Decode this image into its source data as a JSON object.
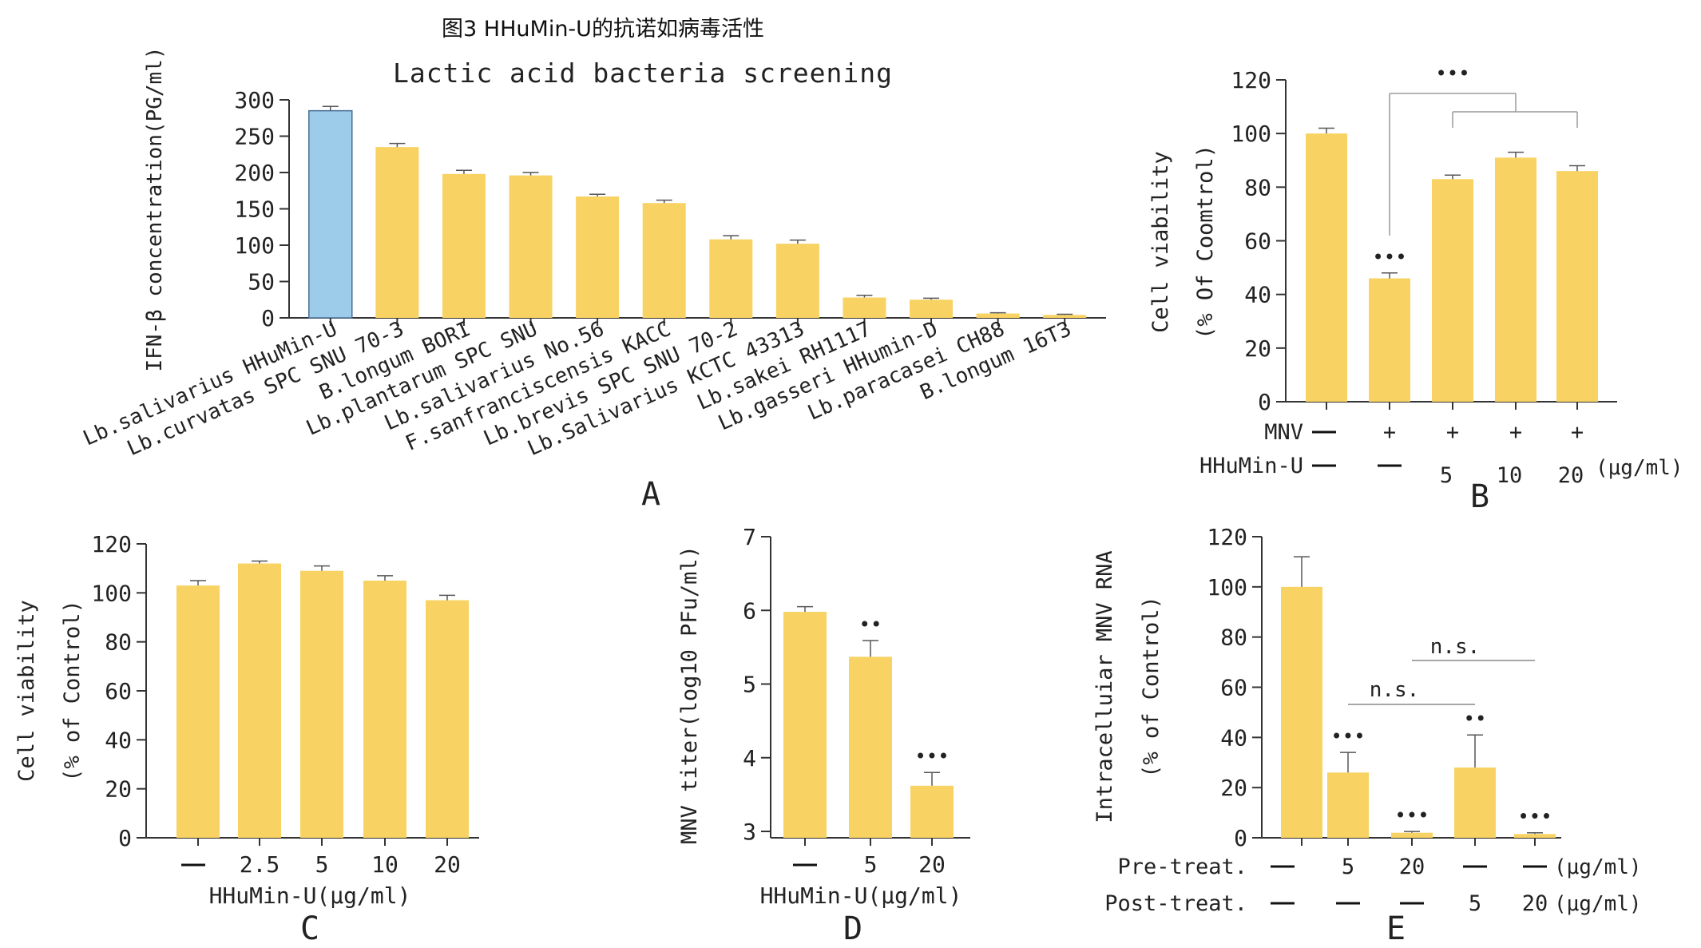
{
  "figure_title": "图3 HHuMin-U的抗诺如病毒活性",
  "colors": {
    "bar": "#F8D262",
    "highlight": "#9DCBEA",
    "highlight_edge": "#4A6E96",
    "axis": "#333333",
    "sig": "#999999",
    "bracket": "#9a9a9a"
  },
  "chart_data": [
    {
      "panel": "A",
      "type": "bar",
      "title": "Lactic acid bacteria screening",
      "ylabel": "IFN-β concentration(PG/ml)",
      "ylim": [
        0,
        300
      ],
      "yticks": [
        0,
        50,
        100,
        150,
        200,
        250,
        300
      ],
      "categories": [
        "Lb.salivarius HHuMin-U",
        "Lb.curvatas SPC SNU 70-3",
        "B.longum BORI",
        "Lb.plantarum SPC SNU",
        "Lb.salivarius No.56",
        "F.sanfranciscensis KACC",
        "Lb.brevis SPC SNU 70-2",
        "Lb.Salivarius KCTC 43313",
        "Lb.sakei RH1117",
        "Lb.gasseri HHumin-D",
        "Lb.paracasei CH88",
        "B.longum 16T3"
      ],
      "values": [
        285,
        235,
        198,
        196,
        167,
        158,
        108,
        102,
        28,
        25,
        6,
        4
      ],
      "errors": [
        6,
        5,
        5,
        4,
        3,
        4,
        5,
        5,
        3,
        2,
        1,
        1
      ],
      "highlight_index": 0
    },
    {
      "panel": "B",
      "type": "bar",
      "ylabel_line1": "Cell viability",
      "ylabel_line2": "(% Of Coomtrol)",
      "ylim": [
        0,
        120
      ],
      "yticks": [
        0,
        20,
        40,
        60,
        80,
        100,
        120
      ],
      "values": [
        100,
        46,
        83,
        91,
        86
      ],
      "errors": [
        2,
        2,
        1.5,
        2,
        2
      ],
      "sig_marks": [
        "",
        "•••",
        "",
        "",
        ""
      ],
      "bracket_mark": "•••",
      "rows": [
        {
          "label": "MNV",
          "cells": [
            "—",
            "+",
            "+",
            "+",
            "+"
          ]
        },
        {
          "label": "HHuMin-U",
          "cells": [
            "—",
            "—",
            "5",
            "10",
            "20"
          ],
          "unit": "(μg/ml)"
        }
      ]
    },
    {
      "panel": "C",
      "type": "bar",
      "ylabel_line1": "Cell viability",
      "ylabel_line2": "(% of Control)",
      "xlabel": "HHuMin-U(μg/ml)",
      "ylim": [
        0,
        120
      ],
      "yticks": [
        0,
        20,
        40,
        60,
        80,
        100,
        120
      ],
      "categories": [
        "—",
        "2.5",
        "5",
        "10",
        "20"
      ],
      "values": [
        103,
        112,
        109,
        105,
        97
      ],
      "errors": [
        2,
        1,
        2,
        2,
        2
      ]
    },
    {
      "panel": "D",
      "type": "bar",
      "ylabel": "MNV titer(log10 PFu/ml)",
      "xlabel": "HHuMin-U(μg/ml)",
      "ylim": [
        3,
        7
      ],
      "yticks": [
        3,
        4,
        5,
        6,
        7
      ],
      "categories": [
        "—",
        "5",
        "20"
      ],
      "values": [
        5.98,
        5.37,
        3.62
      ],
      "errors": [
        0.07,
        0.22,
        0.18
      ],
      "sig_marks": [
        "",
        "••",
        "•••"
      ]
    },
    {
      "panel": "E",
      "type": "bar",
      "ylabel_line1": "Intracelluiar MNV RNA",
      "ylabel_line2": "(% of Control)",
      "ylim": [
        0,
        120
      ],
      "yticks": [
        0,
        20,
        40,
        60,
        80,
        100,
        120
      ],
      "values": [
        100,
        26,
        2,
        28,
        1.5
      ],
      "errors": [
        12,
        8,
        0.5,
        13,
        0.5
      ],
      "sig_marks": [
        "",
        "•••",
        "•••",
        "••",
        "•••"
      ],
      "ns_labels": [
        "n.s.",
        "n.s."
      ],
      "rows": [
        {
          "label": "Pre-treat.",
          "cells": [
            "—",
            "5",
            "20",
            "—",
            "—"
          ],
          "unit": "(μg/ml)"
        },
        {
          "label": "Post-treat.",
          "cells": [
            "—",
            "—",
            "—",
            "5",
            "20"
          ],
          "unit": "(μg/ml)"
        }
      ]
    }
  ]
}
